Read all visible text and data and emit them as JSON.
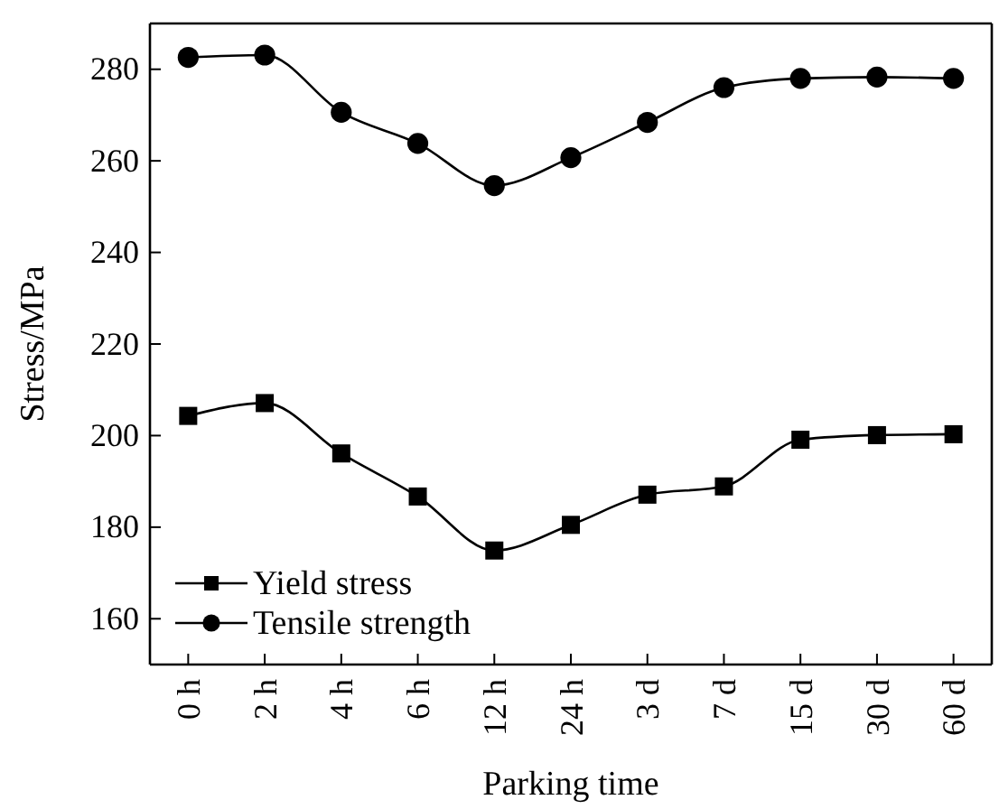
{
  "chart_data": {
    "type": "line",
    "xlabel": "Parking time",
    "ylabel": "Stress/MPa",
    "categories": [
      "0 h",
      "2 h",
      "4 h",
      "6 h",
      "12 h",
      "24 h",
      "3 d",
      "7 d",
      "15 d",
      "30 d",
      "60 d"
    ],
    "series": [
      {
        "name": "Yield stress",
        "color": "#000000",
        "marker": "square",
        "values": [
          204.3,
          207.1,
          196.1,
          186.7,
          174.9,
          180.5,
          187.1,
          188.9,
          199.1,
          200.1,
          200.3
        ]
      },
      {
        "name": "Tensile strength",
        "color": "#000000",
        "marker": "circle",
        "values": [
          282.6,
          283.1,
          270.6,
          263.8,
          254.6,
          260.7,
          268.4,
          276.0,
          278.0,
          278.3,
          278.0
        ]
      }
    ],
    "ylim": [
      150,
      290
    ],
    "yticks": [
      160,
      180,
      200,
      220,
      240,
      260,
      280
    ],
    "grid": false,
    "legend": "bottom left",
    "line_style": "solid"
  }
}
